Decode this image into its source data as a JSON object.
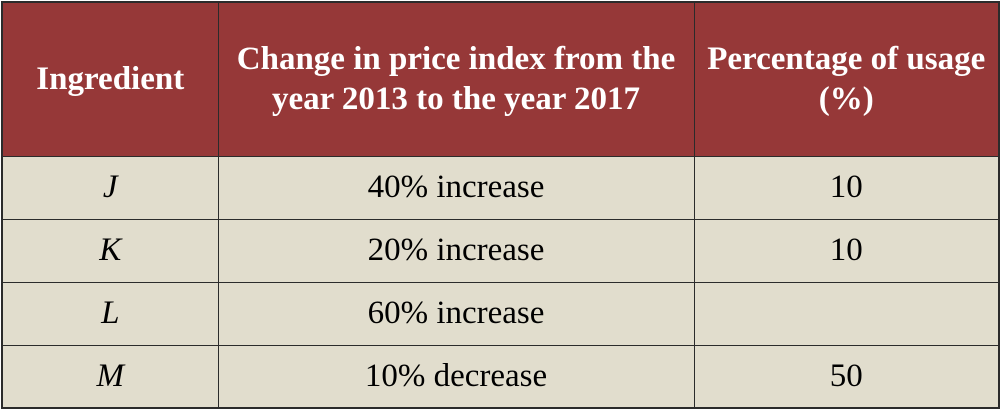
{
  "table": {
    "headers": [
      "Ingredient",
      "Change in price index from the year 2013 to the year 2017",
      "Percentage of usage (%)"
    ],
    "rows": [
      {
        "ingredient": "J",
        "change": "40% increase",
        "usage": "10"
      },
      {
        "ingredient": "K",
        "change": "20% increase",
        "usage": "10"
      },
      {
        "ingredient": "L",
        "change": "60% increase",
        "usage": ""
      },
      {
        "ingredient": "M",
        "change": "10% decrease",
        "usage": "50"
      }
    ]
  },
  "colors": {
    "header_bg": "#963838",
    "header_text": "#ffffff",
    "body_bg": "#e1ddcd",
    "border": "#2b2b2b"
  }
}
